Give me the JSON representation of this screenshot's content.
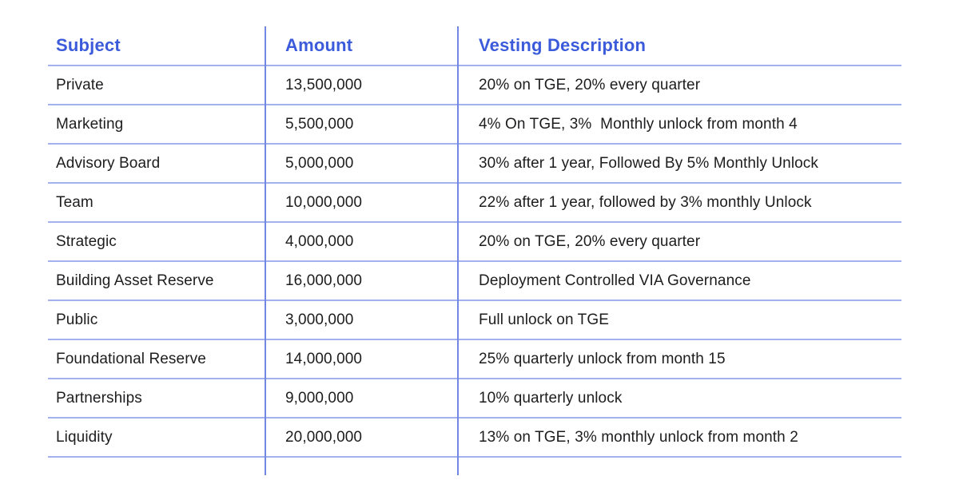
{
  "colors": {
    "header_text": "#3b5bdb",
    "body_text": "#1d1d1f",
    "row_divider": "#a3b2ef",
    "column_divider": "#7286e3",
    "background": "#ffffff"
  },
  "chart_data": {
    "type": "table",
    "title": "",
    "columns": [
      "Subject",
      "Amount",
      "Vesting Description"
    ],
    "rows": [
      {
        "subject": "Private",
        "amount": "13,500,000",
        "amount_value": 13500000,
        "vesting": "20% on TGE, 20% every quarter"
      },
      {
        "subject": "Marketing",
        "amount": "5,500,000",
        "amount_value": 5500000,
        "vesting": "4% On TGE, 3%  Monthly unlock from month 4"
      },
      {
        "subject": "Advisory Board",
        "amount": "5,000,000",
        "amount_value": 5000000,
        "vesting": "30% after 1 year, Followed By 5% Monthly Unlock"
      },
      {
        "subject": "Team",
        "amount": "10,000,000",
        "amount_value": 10000000,
        "vesting": "22% after 1 year, followed by 3% monthly Unlock"
      },
      {
        "subject": "Strategic",
        "amount": "4,000,000",
        "amount_value": 4000000,
        "vesting": "20% on TGE, 20% every quarter"
      },
      {
        "subject": "Building Asset Reserve",
        "amount": "16,000,000",
        "amount_value": 16000000,
        "vesting": "Deployment Controlled VIA Governance"
      },
      {
        "subject": "Public",
        "amount": "3,000,000",
        "amount_value": 3000000,
        "vesting": "Full unlock on TGE"
      },
      {
        "subject": "Foundational Reserve",
        "amount": "14,000,000",
        "amount_value": 14000000,
        "vesting": "25% quarterly unlock from month 15"
      },
      {
        "subject": "Partnerships",
        "amount": "9,000,000",
        "amount_value": 9000000,
        "vesting": "10% quarterly unlock"
      },
      {
        "subject": "Liquidity",
        "amount": "20,000,000",
        "amount_value": 20000000,
        "vesting": "13% on TGE, 3% monthly unlock from month 2"
      }
    ]
  }
}
